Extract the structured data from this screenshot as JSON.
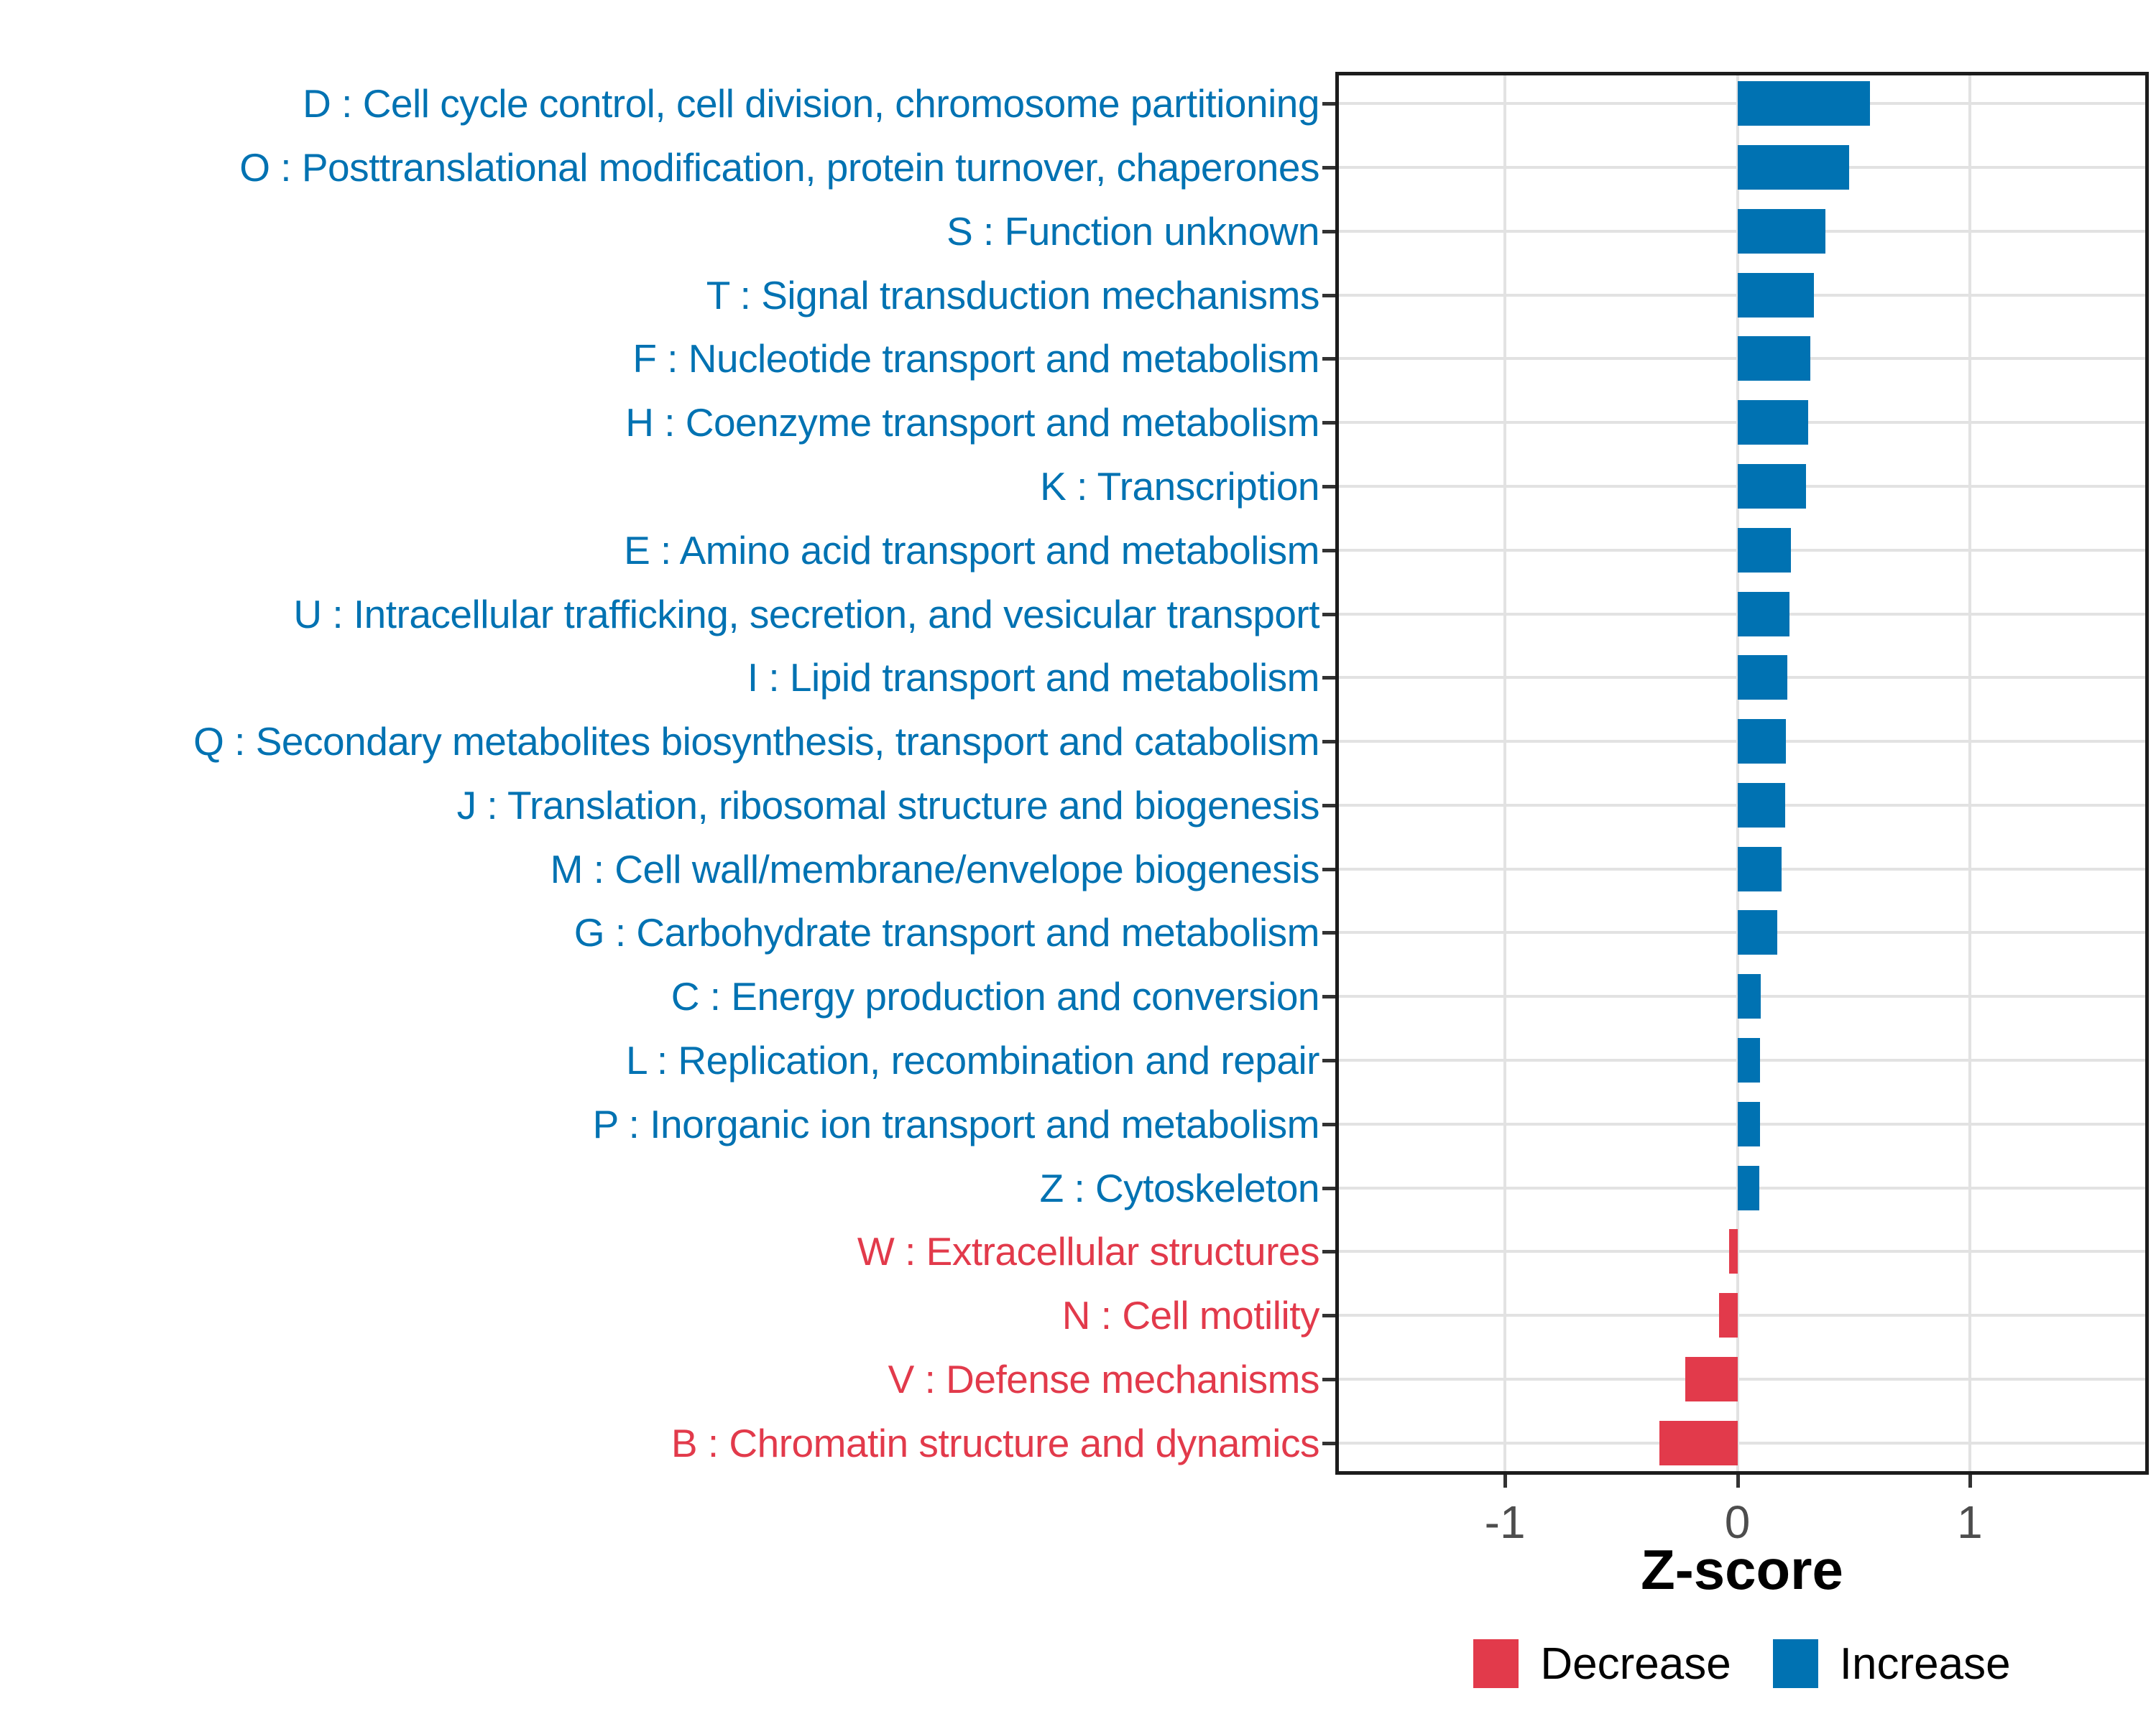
{
  "chart_data": {
    "type": "bar",
    "orientation": "horizontal",
    "xlabel": "Z-score",
    "x_ticks": [
      "-1",
      "0",
      "1"
    ],
    "x_tick_values": [
      -1,
      0,
      1
    ],
    "xlim": [
      -1.73,
      1.77
    ],
    "grid": true,
    "legend_position": "bottom",
    "categories": [
      "D : Cell cycle control, cell division, chromosome partitioning",
      "O : Posttranslational modification, protein turnover, chaperones",
      "S : Function unknown",
      "T : Signal transduction mechanisms",
      "F : Nucleotide transport and metabolism",
      "H : Coenzyme transport and metabolism",
      "K : Transcription",
      "E : Amino acid transport and metabolism",
      "U : Intracellular trafficking, secretion, and vesicular transport",
      "I : Lipid transport and metabolism",
      "Q : Secondary metabolites biosynthesis, transport and catabolism",
      "J : Translation, ribosomal structure and biogenesis",
      "M : Cell wall/membrane/envelope biogenesis",
      "G : Carbohydrate transport and metabolism",
      "C : Energy production and conversion",
      "L : Replication, recombination and repair",
      "P : Inorganic ion transport and metabolism",
      "Z : Cytoskeleton",
      "W : Extracellular structures",
      "N : Cell motility",
      "V : Defense mechanisms",
      "B : Chromatin structure and dynamics"
    ],
    "values": [
      0.57,
      0.48,
      0.38,
      0.33,
      0.315,
      0.305,
      0.295,
      0.23,
      0.225,
      0.215,
      0.21,
      0.205,
      0.19,
      0.17,
      0.1,
      0.098,
      0.096,
      0.093,
      -0.036,
      -0.08,
      -0.224,
      -0.336
    ],
    "directions": [
      "increase",
      "increase",
      "increase",
      "increase",
      "increase",
      "increase",
      "increase",
      "increase",
      "increase",
      "increase",
      "increase",
      "increase",
      "increase",
      "increase",
      "increase",
      "increase",
      "increase",
      "increase",
      "decrease",
      "decrease",
      "decrease",
      "decrease"
    ]
  },
  "colors": {
    "increase": "#0072B2",
    "decrease": "#E23A4B",
    "gridline": "#e2e2e2",
    "axis_text": "#4d4d4d",
    "panel_border": "#1c1c1c"
  },
  "legend": {
    "decrease_label": "Decrease",
    "increase_label": "Increase"
  },
  "axis": {
    "title": "Z-score"
  }
}
